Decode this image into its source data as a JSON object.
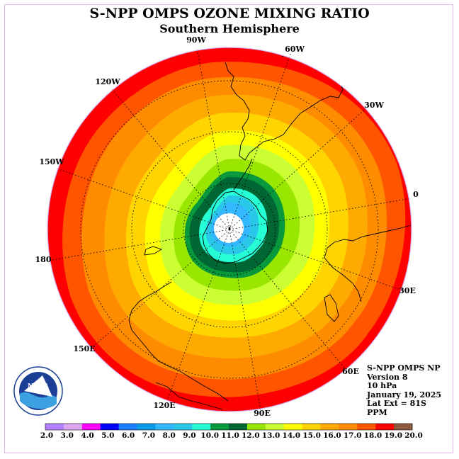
{
  "title": "S-NPP OMPS OZONE MIXING RATIO",
  "subtitle": "Southern Hemisphere",
  "longitude_labels": [
    "90W",
    "60W",
    "30W",
    "0",
    "30E",
    "60E",
    "90E",
    "120E",
    "150E",
    "180",
    "150W",
    "120W"
  ],
  "info": {
    "product": "S-NPP OMPS NP",
    "version": "Version 8",
    "level": "10 hPa",
    "date": "January 19, 2025",
    "lat_ext": "Lat Ext = 81S",
    "units": "PPM"
  },
  "colorbar": {
    "ticks": [
      "2.0",
      "3.0",
      "4.0",
      "5.0",
      "6.0",
      "7.0",
      "8.0",
      "9.0",
      "10.0",
      "11.0",
      "12.0",
      "13.0",
      "14.0",
      "15.0",
      "16.0",
      "17.0",
      "18.0",
      "19.0",
      "20.0"
    ],
    "colors": [
      "#b380ff",
      "#dda6f2",
      "#ff00ff",
      "#0000ff",
      "#1a80ff",
      "#0a9ae6",
      "#33b8ff",
      "#29c8e8",
      "#26ffd6",
      "#08993d",
      "#006633",
      "#99e600",
      "#ccff33",
      "#ffff00",
      "#ffd400",
      "#ffaa00",
      "#ff8c00",
      "#ff5500",
      "#ff0000",
      "#8b5a3c"
    ]
  },
  "map_colors": {
    "outer": "#ff0000",
    "ring1": "#ff5500",
    "ring2": "#ff8c00",
    "ring3": "#ffaa00",
    "ring4": "#ffd400",
    "ring5": "#ffff00",
    "ring6": "#ccff33",
    "ring7": "#99e600",
    "ring8": "#08993d",
    "ring9": "#006633",
    "ring10": "#26ffd6",
    "ring11": "#29c8e8",
    "ring12": "#33b8ff",
    "pole": "#ffffff"
  },
  "logo_text": "NOAA"
}
